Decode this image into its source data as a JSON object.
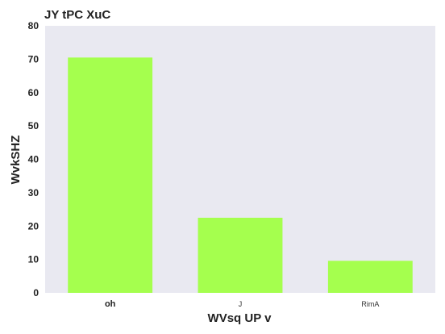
{
  "chart_data": {
    "type": "bar",
    "title": "JY tPC XuC",
    "xlabel": "WVsq UP v",
    "ylabel": "WvkSHZ",
    "categories": [
      "oh",
      "J",
      "RimA"
    ],
    "values": [
      70.5,
      22.5,
      9.6
    ],
    "ylim": [
      0,
      80
    ],
    "yticks": [
      "0",
      "10",
      "20",
      "30",
      "40",
      "50",
      "60",
      "70",
      "80"
    ],
    "grid": false,
    "colors": {
      "bar": "#a5ff4e",
      "plot_background": "#e9e9f1"
    }
  }
}
